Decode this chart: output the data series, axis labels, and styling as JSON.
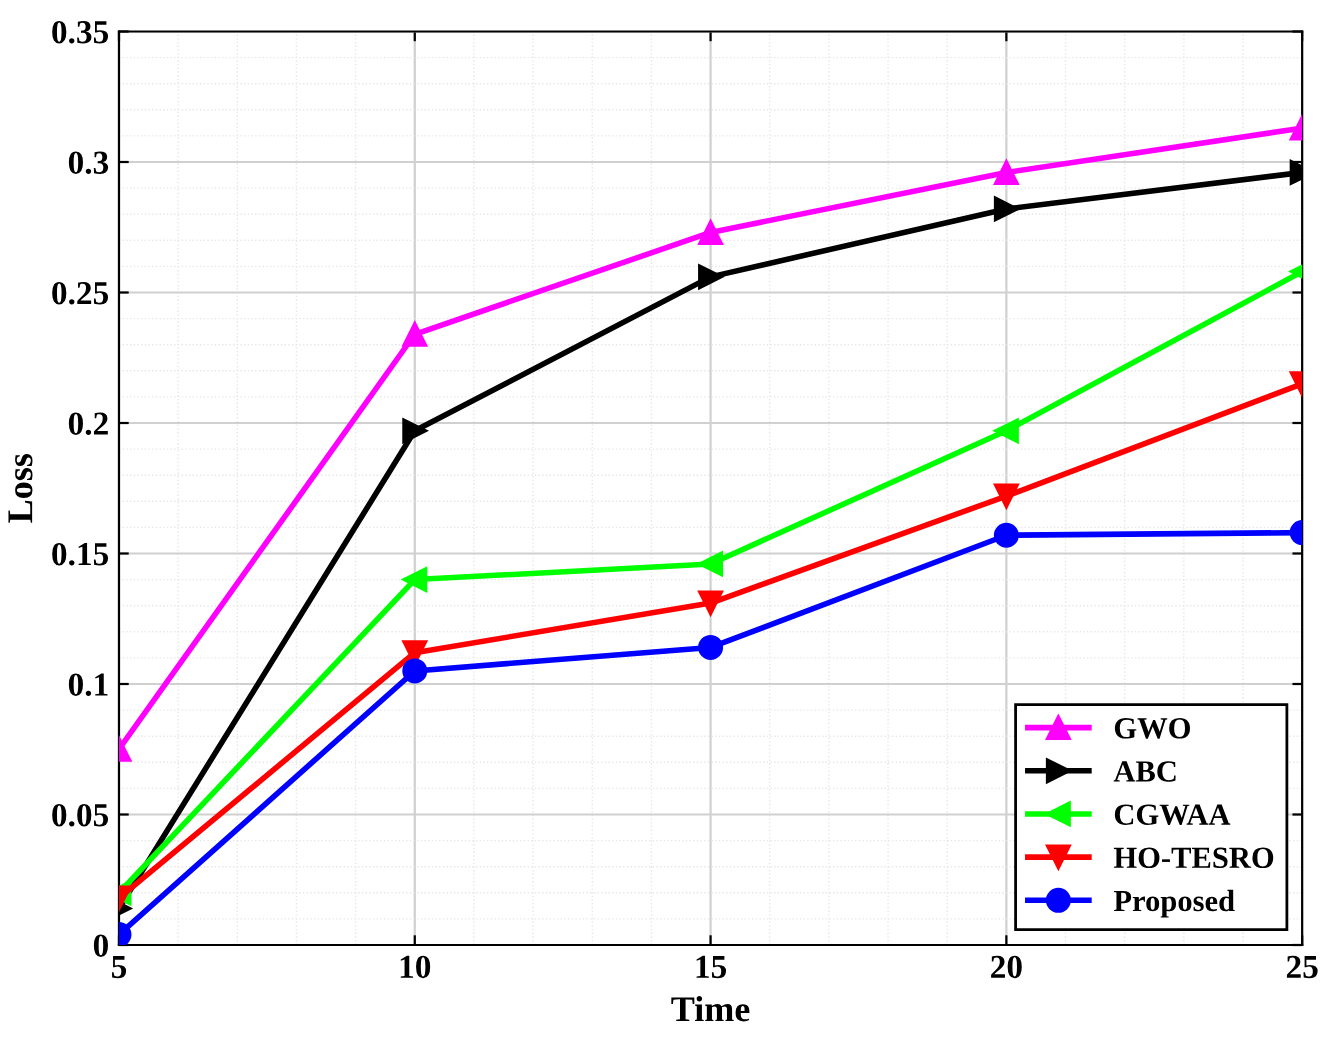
{
  "chart_data": {
    "type": "line",
    "xlabel": "Time",
    "ylabel": "Loss",
    "x": [
      5,
      10,
      15,
      20,
      25
    ],
    "xlim": [
      5,
      25
    ],
    "xticks": [
      5,
      10,
      15,
      20,
      25
    ],
    "ylim": [
      0,
      0.35
    ],
    "yticks": [
      0,
      0.05,
      0.1,
      0.15,
      0.2,
      0.25,
      0.3,
      0.35
    ],
    "grid": true,
    "legend": "bottom right",
    "series": [
      {
        "name": "GWO",
        "color": "#ff00ff",
        "marker": "triangle-up",
        "values": [
          0.075,
          0.234,
          0.273,
          0.296,
          0.313
        ]
      },
      {
        "name": "ABC",
        "color": "#000000",
        "marker": "triangle-right",
        "values": [
          0.014,
          0.197,
          0.256,
          0.282,
          0.296
        ]
      },
      {
        "name": "CGWAA",
        "color": "#00ff00",
        "marker": "triangle-left",
        "values": [
          0.02,
          0.14,
          0.146,
          0.197,
          0.258
        ]
      },
      {
        "name": "HO-TESRO",
        "color": "#ff0000",
        "marker": "triangle-down",
        "values": [
          0.018,
          0.112,
          0.131,
          0.172,
          0.215
        ]
      },
      {
        "name": "Proposed",
        "color": "#0000ff",
        "marker": "circle",
        "values": [
          0.004,
          0.105,
          0.114,
          0.157,
          0.158
        ]
      }
    ]
  }
}
